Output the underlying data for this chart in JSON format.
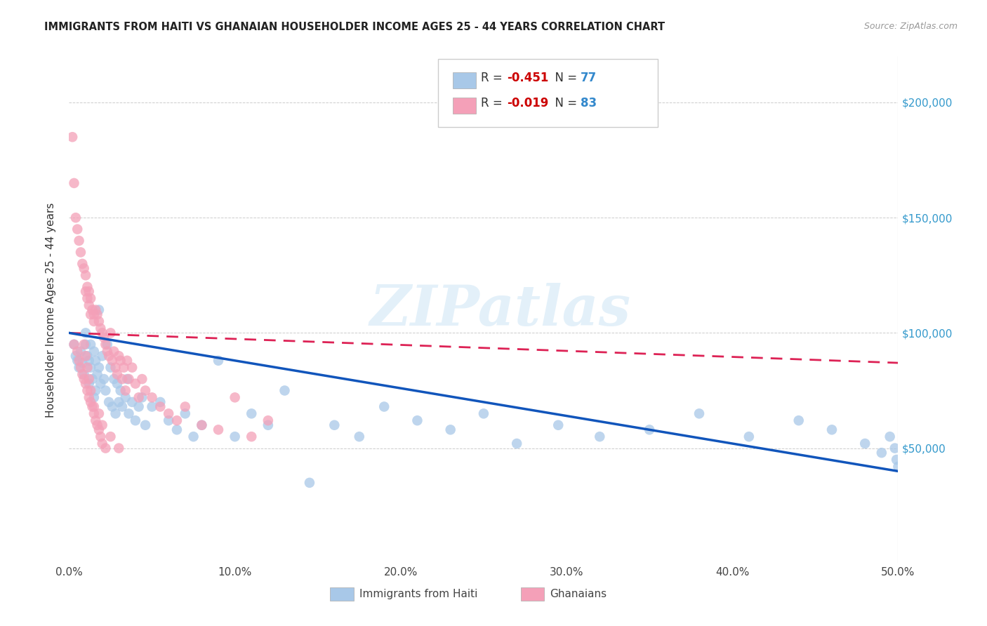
{
  "title": "IMMIGRANTS FROM HAITI VS GHANAIAN HOUSEHOLDER INCOME AGES 25 - 44 YEARS CORRELATION CHART",
  "source": "Source: ZipAtlas.com",
  "ylabel": "Householder Income Ages 25 - 44 years",
  "xlim": [
    0.0,
    0.5
  ],
  "ylim": [
    0,
    220000
  ],
  "xtick_labels": [
    "0.0%",
    "10.0%",
    "20.0%",
    "30.0%",
    "40.0%",
    "50.0%"
  ],
  "xtick_values": [
    0.0,
    0.1,
    0.2,
    0.3,
    0.4,
    0.5
  ],
  "ytick_labels": [
    "$50,000",
    "$100,000",
    "$150,000",
    "$200,000"
  ],
  "ytick_values": [
    50000,
    100000,
    150000,
    200000
  ],
  "haiti_R": -0.451,
  "haiti_N": 77,
  "ghana_R": -0.019,
  "ghana_N": 83,
  "haiti_color": "#a8c8e8",
  "ghana_color": "#f4a0b8",
  "haiti_line_color": "#1155bb",
  "ghana_line_color": "#dd2255",
  "haiti_scatter_x": [
    0.003,
    0.004,
    0.005,
    0.006,
    0.007,
    0.008,
    0.009,
    0.01,
    0.01,
    0.011,
    0.012,
    0.012,
    0.013,
    0.013,
    0.014,
    0.015,
    0.015,
    0.016,
    0.016,
    0.017,
    0.018,
    0.018,
    0.019,
    0.02,
    0.021,
    0.022,
    0.023,
    0.024,
    0.025,
    0.026,
    0.027,
    0.028,
    0.029,
    0.03,
    0.031,
    0.032,
    0.034,
    0.035,
    0.036,
    0.038,
    0.04,
    0.042,
    0.044,
    0.046,
    0.05,
    0.055,
    0.06,
    0.065,
    0.07,
    0.075,
    0.08,
    0.09,
    0.1,
    0.11,
    0.12,
    0.13,
    0.145,
    0.16,
    0.175,
    0.19,
    0.21,
    0.23,
    0.25,
    0.27,
    0.295,
    0.32,
    0.35,
    0.38,
    0.41,
    0.44,
    0.46,
    0.48,
    0.49,
    0.495,
    0.498,
    0.499,
    0.5
  ],
  "haiti_scatter_y": [
    95000,
    90000,
    88000,
    85000,
    92000,
    87000,
    82000,
    100000,
    95000,
    90000,
    88000,
    78000,
    95000,
    85000,
    80000,
    92000,
    72000,
    88000,
    75000,
    82000,
    110000,
    85000,
    78000,
    90000,
    80000,
    75000,
    95000,
    70000,
    85000,
    68000,
    80000,
    65000,
    78000,
    70000,
    75000,
    68000,
    72000,
    80000,
    65000,
    70000,
    62000,
    68000,
    72000,
    60000,
    68000,
    70000,
    62000,
    58000,
    65000,
    55000,
    60000,
    88000,
    55000,
    65000,
    60000,
    75000,
    35000,
    60000,
    55000,
    68000,
    62000,
    58000,
    65000,
    52000,
    60000,
    55000,
    58000,
    65000,
    55000,
    62000,
    58000,
    52000,
    48000,
    55000,
    50000,
    45000,
    42000
  ],
  "ghana_scatter_x": [
    0.002,
    0.003,
    0.003,
    0.004,
    0.005,
    0.005,
    0.006,
    0.006,
    0.007,
    0.007,
    0.008,
    0.008,
    0.009,
    0.009,
    0.01,
    0.01,
    0.01,
    0.011,
    0.011,
    0.011,
    0.012,
    0.012,
    0.012,
    0.013,
    0.013,
    0.013,
    0.014,
    0.014,
    0.015,
    0.015,
    0.015,
    0.016,
    0.016,
    0.017,
    0.017,
    0.018,
    0.018,
    0.019,
    0.019,
    0.02,
    0.02,
    0.021,
    0.022,
    0.022,
    0.023,
    0.024,
    0.025,
    0.026,
    0.027,
    0.028,
    0.029,
    0.03,
    0.031,
    0.032,
    0.033,
    0.034,
    0.035,
    0.036,
    0.038,
    0.04,
    0.042,
    0.044,
    0.046,
    0.05,
    0.055,
    0.06,
    0.065,
    0.07,
    0.08,
    0.09,
    0.1,
    0.11,
    0.12,
    0.009,
    0.01,
    0.011,
    0.012,
    0.013,
    0.015,
    0.018,
    0.02,
    0.025,
    0.03
  ],
  "ghana_scatter_y": [
    185000,
    165000,
    95000,
    150000,
    145000,
    92000,
    140000,
    88000,
    135000,
    85000,
    130000,
    82000,
    128000,
    80000,
    125000,
    118000,
    78000,
    120000,
    115000,
    75000,
    118000,
    112000,
    72000,
    115000,
    108000,
    70000,
    110000,
    68000,
    108000,
    105000,
    65000,
    110000,
    62000,
    108000,
    60000,
    105000,
    58000,
    102000,
    55000,
    100000,
    52000,
    98000,
    95000,
    50000,
    92000,
    90000,
    100000,
    88000,
    92000,
    85000,
    82000,
    90000,
    88000,
    80000,
    85000,
    75000,
    88000,
    80000,
    85000,
    78000,
    72000,
    80000,
    75000,
    72000,
    68000,
    65000,
    62000,
    68000,
    60000,
    58000,
    72000,
    55000,
    62000,
    95000,
    90000,
    85000,
    80000,
    75000,
    68000,
    65000,
    60000,
    55000,
    50000
  ]
}
